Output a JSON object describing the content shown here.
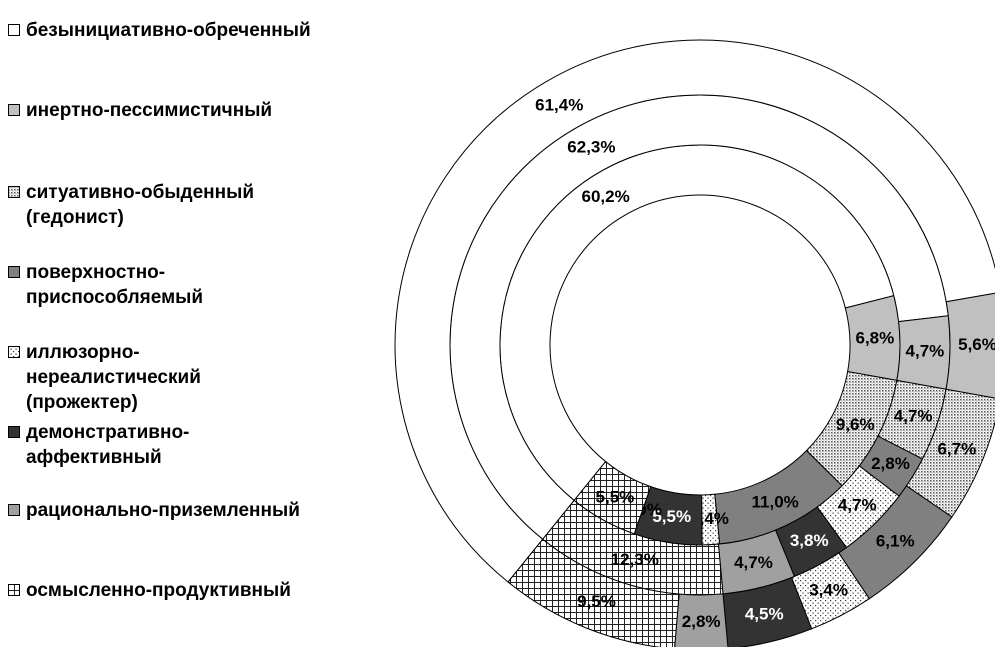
{
  "chart_data": {
    "type": "donut",
    "categories": [
      "безынициативно-обреченный",
      "инертно-пессимистичный",
      "ситуативно-обыденный (гедонист)",
      "поверхностно-приспособляемый",
      "иллюзорно-нереалистический (прожектер)",
      "демонстративно-аффективный",
      "рационально-приземленный",
      "осмысленно-продуктивный"
    ],
    "colors": [
      "#ffffff",
      "#c0c0c0",
      "#d8d8d8",
      "#808080",
      "#f0f0f0",
      "#333333",
      "#a0a0a0",
      "#ffffff"
    ],
    "patterns": [
      "none",
      "none",
      "dense-dots",
      "none",
      "sparse-dots",
      "none",
      "none",
      "crosshatch"
    ],
    "label_colors": [
      "#000000",
      "#000000",
      "#000000",
      "#000000",
      "#000000",
      "#ffffff",
      "#000000",
      "#000000"
    ],
    "series": [
      {
        "values": [
          60.2,
          6.8,
          9.6,
          11.0,
          1.4,
          5.5,
          0.0,
          5.5
        ],
        "value_labels": [
          "60,2%",
          "6,8%",
          "9,6%",
          "11,0%",
          "1,4%",
          "5,5%",
          "0,0%",
          "5,5%"
        ]
      },
      {
        "values": [
          62.3,
          4.7,
          4.7,
          2.8,
          4.7,
          3.8,
          4.7,
          12.3
        ],
        "value_labels": [
          "62,3%",
          "4,7%",
          "4,7%",
          "2,8%",
          "4,7%",
          "3,8%",
          "4,7%",
          "12,3%"
        ]
      },
      {
        "values": [
          61.4,
          5.6,
          6.7,
          6.1,
          3.4,
          4.5,
          2.8,
          9.5
        ],
        "value_labels": [
          "61,4%",
          "5,6%",
          "6,7%",
          "6,1%",
          "3,4%",
          "4,5%",
          "2,8%",
          "9,5%"
        ]
      }
    ],
    "start_angle": 219
  }
}
